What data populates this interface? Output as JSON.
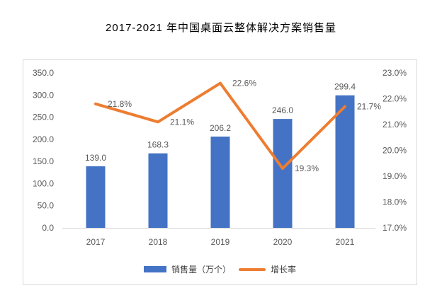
{
  "title": "2017-2021 年中国桌面云整体解决方案销售量",
  "chart_data": {
    "type": "bar+line",
    "title": "2017-2021 年中国桌面云整体解决方案销售量",
    "categories": [
      "2017",
      "2018",
      "2019",
      "2020",
      "2021"
    ],
    "series": [
      {
        "name": "销售量（万个）",
        "type": "bar",
        "axis": "left",
        "color": "#4472C4",
        "values": [
          139.0,
          168.3,
          206.2,
          246.0,
          299.4
        ],
        "labels": [
          "139.0",
          "168.3",
          "206.2",
          "246.0",
          "299.4"
        ]
      },
      {
        "name": "增长率",
        "type": "line",
        "axis": "right",
        "color": "#ED7D31",
        "values": [
          21.8,
          21.1,
          22.6,
          19.3,
          21.7
        ],
        "labels": [
          "21.8%",
          "21.1%",
          "22.6%",
          "19.3%",
          "21.7%"
        ]
      }
    ],
    "left_axis": {
      "min": 0,
      "max": 350,
      "step": 50,
      "ticks": [
        "350.0",
        "300.0",
        "250.0",
        "200.0",
        "150.0",
        "100.0",
        "50.0",
        "0.0"
      ]
    },
    "right_axis": {
      "min": 17,
      "max": 23,
      "step": 1,
      "ticks": [
        "23.0%",
        "22.0%",
        "21.0%",
        "20.0%",
        "19.0%",
        "18.0%",
        "17.0%"
      ]
    },
    "grid": false,
    "legend_position": "bottom"
  }
}
